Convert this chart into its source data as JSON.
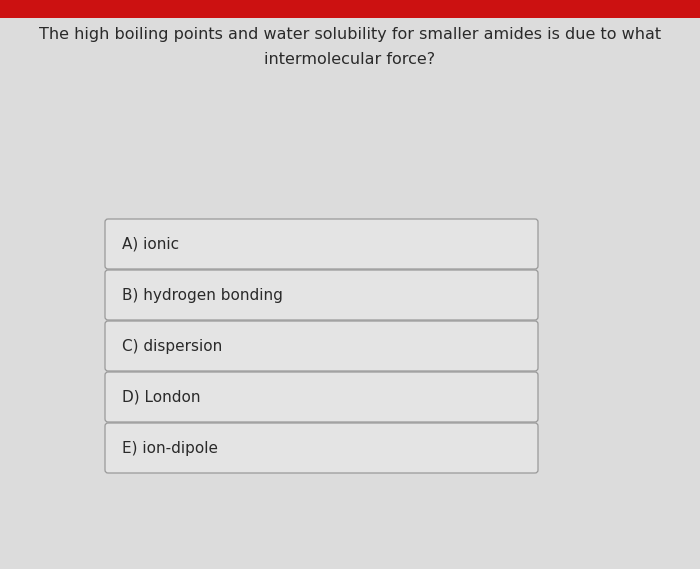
{
  "question_line1": "The high boiling points and water solubility for smaller amides is due to what",
  "question_line2": "intermolecular force?",
  "options": [
    "A) ionic",
    "B) hydrogen bonding",
    "C) dispersion",
    "D) London",
    "E) ion-dipole"
  ],
  "background_color": "#dcdcdc",
  "header_bar_color": "#cc1111",
  "box_bg_color": "#e4e4e4",
  "box_border_color": "#999999",
  "text_color": "#2a2a2a",
  "question_fontsize": 11.5,
  "option_fontsize": 11.0,
  "figwidth": 7.0,
  "figheight": 5.69
}
